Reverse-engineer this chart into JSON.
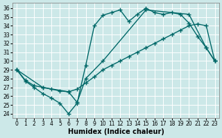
{
  "bg_color": "#cce8e8",
  "line_color": "#006868",
  "grid_color": "#b8d8d8",
  "xlabel": "Humidex (Indice chaleur)",
  "xlim": [
    -0.5,
    23.5
  ],
  "ylim_min": 23.5,
  "ylim_max": 36.6,
  "yticks": [
    24,
    25,
    26,
    27,
    28,
    29,
    30,
    31,
    32,
    33,
    34,
    35,
    36
  ],
  "xticks": [
    0,
    1,
    2,
    3,
    4,
    5,
    6,
    7,
    8,
    9,
    10,
    11,
    12,
    13,
    14,
    15,
    16,
    17,
    18,
    19,
    20,
    21,
    22,
    23
  ],
  "line1_x": [
    0,
    1,
    2,
    3,
    4,
    5,
    6,
    7,
    8,
    9,
    10,
    11,
    12,
    13,
    14,
    15,
    16,
    17,
    18,
    19,
    20,
    21,
    22,
    23
  ],
  "line1_y": [
    29.0,
    27.7,
    27.0,
    26.3,
    25.8,
    25.2,
    24.0,
    25.2,
    29.5,
    34.0,
    35.2,
    35.5,
    35.8,
    34.5,
    35.3,
    36.0,
    35.5,
    35.3,
    35.5,
    35.3,
    34.3,
    32.8,
    31.5,
    30.0
  ],
  "line2_x": [
    0,
    1,
    2,
    3,
    4,
    5,
    6,
    7,
    8,
    9,
    10,
    11,
    12,
    13,
    14,
    15,
    16,
    17,
    18,
    19,
    20,
    21,
    22,
    23
  ],
  "line2_y": [
    29.0,
    27.8,
    27.2,
    27.0,
    26.8,
    26.6,
    26.5,
    26.8,
    27.5,
    28.2,
    29.0,
    29.5,
    30.0,
    30.5,
    31.0,
    31.5,
    32.0,
    32.5,
    33.0,
    33.5,
    34.0,
    34.2,
    34.0,
    30.0
  ],
  "line3_x": [
    0,
    3,
    6,
    7,
    8,
    10,
    15,
    20,
    22,
    23
  ],
  "line3_y": [
    29.0,
    27.0,
    26.5,
    25.3,
    28.0,
    30.0,
    35.8,
    35.3,
    31.5,
    30.0
  ],
  "marker": "+",
  "markersize": 4,
  "linewidth": 1.0,
  "tick_fontsize": 5.5,
  "label_fontsize": 7
}
